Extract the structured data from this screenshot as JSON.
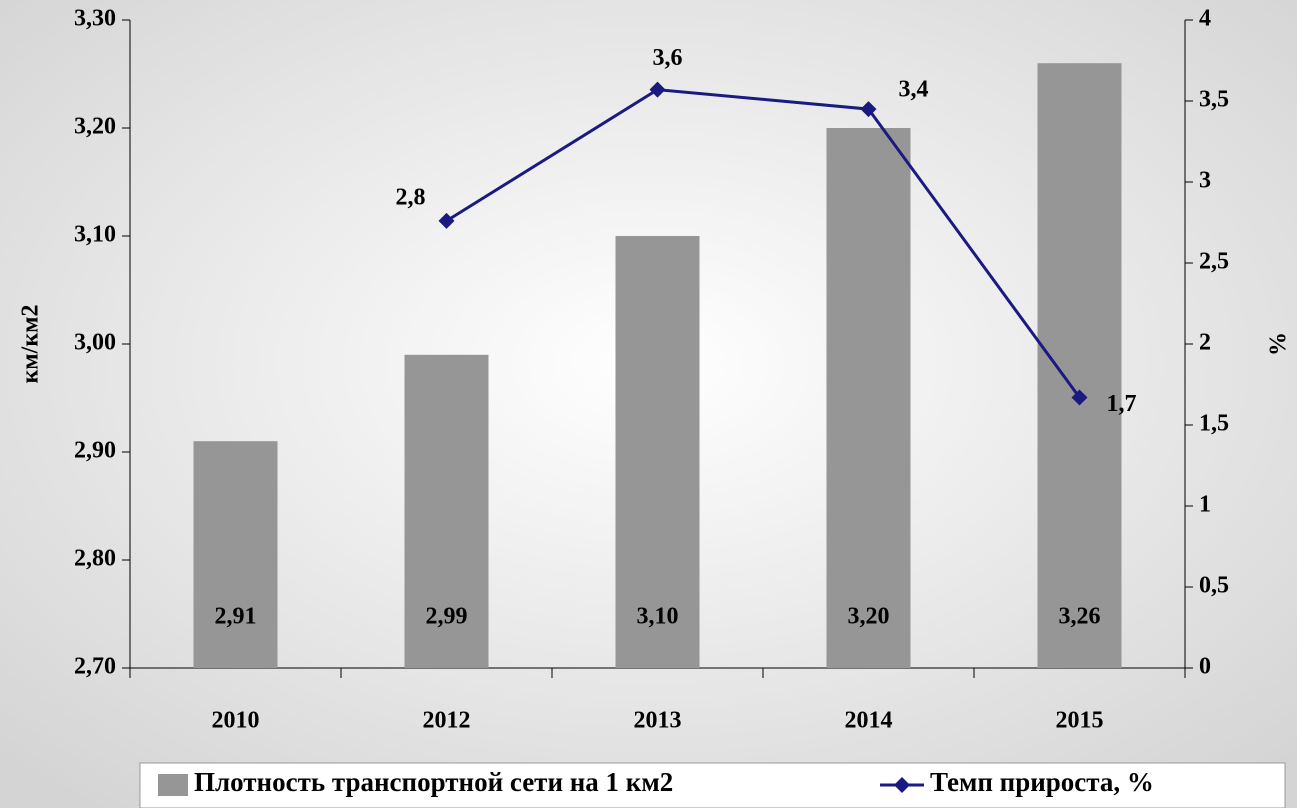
{
  "chart_data": {
    "type": "bar",
    "categories": [
      "2010",
      "2012",
      "2013",
      "2014",
      "2015"
    ],
    "series": [
      {
        "name": "Плотность транспортной сети на 1 км2",
        "type": "bar",
        "color": "#969696",
        "values": [
          2.91,
          2.99,
          3.1,
          3.2,
          3.26
        ],
        "value_labels": [
          "2,91",
          "2,99",
          "3,10",
          "3,20",
          "3,26"
        ]
      },
      {
        "name": "Темп прироста, %",
        "type": "line",
        "axis": "y2",
        "color": "#1a1a80",
        "values": [
          null,
          2.76,
          3.57,
          3.45,
          1.67
        ],
        "value_labels": [
          null,
          "2,8",
          "3,6",
          "3,4",
          "1,7"
        ]
      }
    ],
    "ylabel": "км/км2",
    "y2label": "%",
    "ylim": [
      2.7,
      3.3
    ],
    "yticks": [
      {
        "value": 2.7,
        "label": "2,70"
      },
      {
        "value": 2.8,
        "label": "2,80"
      },
      {
        "value": 2.9,
        "label": "2,90"
      },
      {
        "value": 3.0,
        "label": "3,00"
      },
      {
        "value": 3.1,
        "label": "3,10"
      },
      {
        "value": 3.2,
        "label": "3,20"
      },
      {
        "value": 3.3,
        "label": "3,30"
      }
    ],
    "y2lim": [
      0,
      4
    ],
    "y2ticks": [
      0,
      {
        "value": 0.5,
        "label": "0,5"
      },
      1,
      {
        "value": 1.5,
        "label": "1,5"
      },
      2,
      {
        "value": 2.5,
        "label": "2,5"
      },
      3,
      {
        "value": 3.5,
        "label": "3,5"
      },
      4
    ],
    "legend": "bottom"
  }
}
